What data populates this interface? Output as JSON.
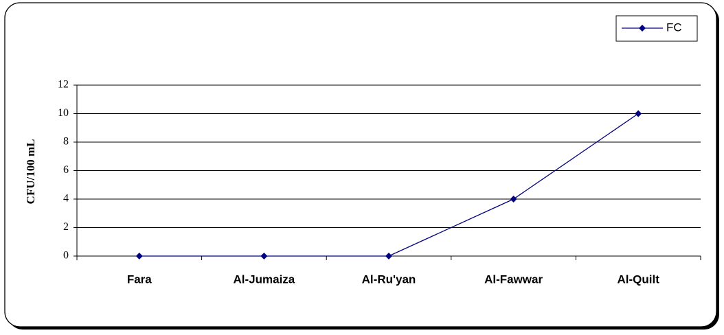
{
  "chart_data": {
    "type": "line",
    "y_label": "CFU/100 mL",
    "categories": [
      "Fara",
      "Al-Jumaiza",
      "Al-Ru'yan",
      "Al-Fawwar",
      "Al-Quilt"
    ],
    "series": [
      {
        "name": "FC",
        "color": "#000080",
        "values": [
          0,
          0,
          0,
          4,
          10
        ]
      }
    ],
    "ylim": [
      0,
      12
    ],
    "yticks": [
      0,
      2,
      4,
      6,
      8,
      10,
      12
    ],
    "grid": true,
    "legend": "top-right"
  }
}
